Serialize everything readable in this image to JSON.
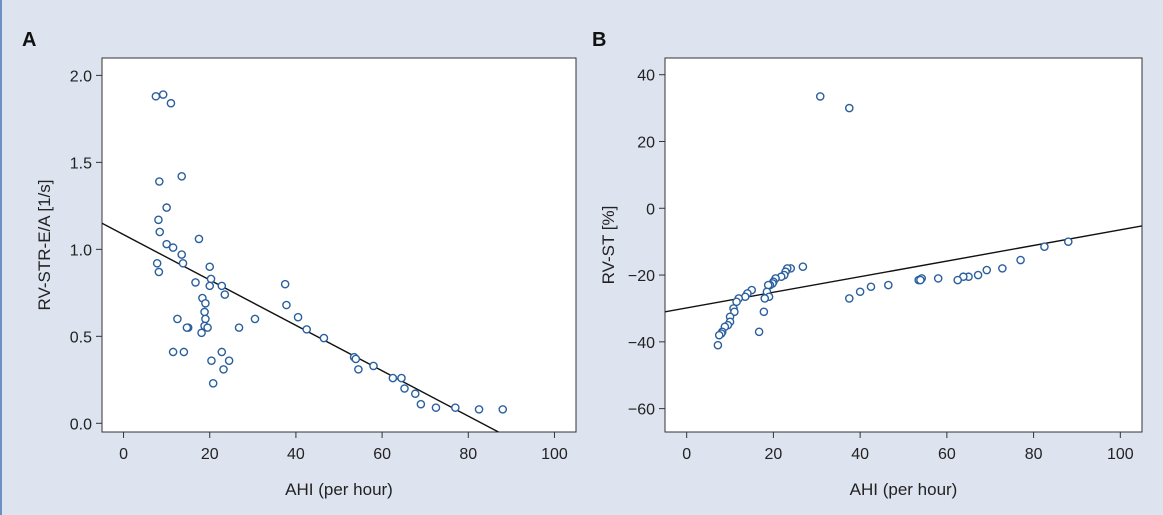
{
  "colors": {
    "background": "#dde3ef",
    "plot_bg": "#ffffff",
    "marker": "#2a5f9e",
    "line": "#111111",
    "frame_accent": "#6e8fc2"
  },
  "panels": [
    {
      "letter": "A",
      "xlabel": "AHI (per hour)",
      "ylabel": "RV-STR-E/A [1/s]"
    },
    {
      "letter": "B",
      "xlabel": "AHI (per hour)",
      "ylabel": "RV-ST [%]"
    }
  ],
  "chart_data": [
    {
      "type": "scatter",
      "panel": "A",
      "title": "",
      "xlabel": "AHI (per hour)",
      "ylabel": "RV-STR-E/A [1/s]",
      "xlim": [
        -5,
        105
      ],
      "ylim": [
        -0.05,
        2.1
      ],
      "xticks": [
        0,
        20,
        40,
        60,
        80,
        100
      ],
      "yticks": [
        0.0,
        0.5,
        1.0,
        1.5,
        2.0
      ],
      "xtick_labels": [
        "0",
        "20",
        "40",
        "60",
        "80",
        "100"
      ],
      "ytick_labels": [
        "0.0",
        "0.5",
        "1.0",
        "1.5",
        "2.0"
      ],
      "grid": false,
      "regression_line": {
        "x": [
          -5,
          87
        ],
        "y": [
          1.15,
          -0.05
        ]
      },
      "points": [
        [
          7.5,
          1.88
        ],
        [
          9.2,
          1.89
        ],
        [
          11,
          1.84
        ],
        [
          13.5,
          1.42
        ],
        [
          8.3,
          1.39
        ],
        [
          10,
          1.24
        ],
        [
          8.1,
          1.17
        ],
        [
          8.4,
          1.1
        ],
        [
          17.5,
          1.06
        ],
        [
          10,
          1.03
        ],
        [
          11.5,
          1.01
        ],
        [
          13.5,
          0.97
        ],
        [
          7.8,
          0.92
        ],
        [
          13.8,
          0.92
        ],
        [
          20,
          0.9
        ],
        [
          8.2,
          0.87
        ],
        [
          20.3,
          0.83
        ],
        [
          16.7,
          0.81
        ],
        [
          37.5,
          0.8
        ],
        [
          20,
          0.79
        ],
        [
          22.8,
          0.79
        ],
        [
          23.5,
          0.74
        ],
        [
          18.3,
          0.72
        ],
        [
          19,
          0.69
        ],
        [
          37.8,
          0.68
        ],
        [
          18.8,
          0.64
        ],
        [
          40.5,
          0.61
        ],
        [
          12.5,
          0.6
        ],
        [
          19,
          0.6
        ],
        [
          30.5,
          0.6
        ],
        [
          18.8,
          0.56
        ],
        [
          15,
          0.55
        ],
        [
          14.7,
          0.55
        ],
        [
          26.8,
          0.55
        ],
        [
          19.5,
          0.55
        ],
        [
          42.5,
          0.54
        ],
        [
          18.1,
          0.52
        ],
        [
          46.5,
          0.49
        ],
        [
          11.5,
          0.41
        ],
        [
          14,
          0.41
        ],
        [
          22.8,
          0.41
        ],
        [
          53.5,
          0.38
        ],
        [
          53.9,
          0.37
        ],
        [
          20.4,
          0.36
        ],
        [
          24.5,
          0.36
        ],
        [
          58,
          0.33
        ],
        [
          54.5,
          0.31
        ],
        [
          23.2,
          0.31
        ],
        [
          62.5,
          0.26
        ],
        [
          64.5,
          0.26
        ],
        [
          20.8,
          0.23
        ],
        [
          65.2,
          0.2
        ],
        [
          67.7,
          0.17
        ],
        [
          69,
          0.11
        ],
        [
          72.5,
          0.09
        ],
        [
          77,
          0.09
        ],
        [
          82.5,
          0.08
        ],
        [
          88,
          0.08
        ]
      ]
    },
    {
      "type": "scatter",
      "panel": "B",
      "title": "",
      "xlabel": "AHI (per hour)",
      "ylabel": "RV-ST [%]",
      "xlim": [
        -5,
        105
      ],
      "ylim": [
        -67,
        45
      ],
      "xticks": [
        0,
        20,
        40,
        60,
        80,
        100
      ],
      "yticks": [
        -60,
        -40,
        -20,
        0,
        20,
        40
      ],
      "xtick_labels": [
        "0",
        "20",
        "40",
        "60",
        "80",
        "100"
      ],
      "ytick_labels": [
        "−60",
        "−40",
        "−20",
        "0",
        "20",
        "40"
      ],
      "grid": false,
      "regression_line": {
        "x": [
          -5,
          105
        ],
        "y": [
          -31,
          -5.3
        ]
      },
      "points": [
        [
          30.8,
          33.5
        ],
        [
          37.5,
          30
        ],
        [
          88,
          -10
        ],
        [
          82.5,
          -11.5
        ],
        [
          77,
          -15.5
        ],
        [
          72.8,
          -18
        ],
        [
          69.2,
          -18.5
        ],
        [
          67.2,
          -20
        ],
        [
          65,
          -20.5
        ],
        [
          63.8,
          -20.5
        ],
        [
          62.5,
          -21.5
        ],
        [
          58,
          -21
        ],
        [
          54.2,
          -21
        ],
        [
          53.5,
          -21.5
        ],
        [
          53.9,
          -21.5
        ],
        [
          46.5,
          -23
        ],
        [
          42.5,
          -23.5
        ],
        [
          40,
          -25
        ],
        [
          37.5,
          -27
        ],
        [
          26.8,
          -17.5
        ],
        [
          24,
          -18
        ],
        [
          23.2,
          -18
        ],
        [
          22.8,
          -19
        ],
        [
          22.5,
          -20
        ],
        [
          21.8,
          -20.5
        ],
        [
          20.5,
          -21
        ],
        [
          20,
          -22
        ],
        [
          19.8,
          -22.5
        ],
        [
          19.2,
          -23
        ],
        [
          18.8,
          -23
        ],
        [
          18.5,
          -25
        ],
        [
          19,
          -26.5
        ],
        [
          18,
          -27
        ],
        [
          15,
          -24.5
        ],
        [
          14,
          -25.5
        ],
        [
          13.5,
          -26.5
        ],
        [
          12,
          -27
        ],
        [
          11.5,
          -28
        ],
        [
          17.8,
          -31
        ],
        [
          10.8,
          -30
        ],
        [
          11,
          -31
        ],
        [
          10,
          -32.5
        ],
        [
          10,
          -34
        ],
        [
          9.5,
          -35
        ],
        [
          8.8,
          -35.5
        ],
        [
          16.7,
          -37
        ],
        [
          8.2,
          -37
        ],
        [
          8,
          -37.5
        ],
        [
          7.5,
          -38
        ],
        [
          7.2,
          -41
        ]
      ]
    }
  ]
}
